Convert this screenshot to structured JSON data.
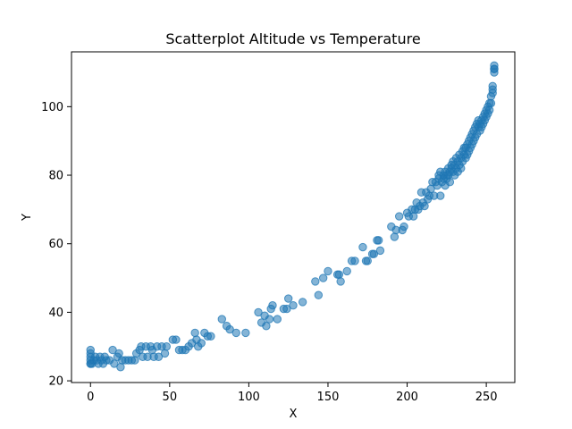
{
  "chart_data": {
    "type": "scatter",
    "title": "Scatterplot Altitude vs Temperature",
    "xlabel": "X",
    "ylabel": "Y",
    "xlim": [
      -12,
      268
    ],
    "ylim": [
      19.5,
      116
    ],
    "xticks": [
      0,
      50,
      100,
      150,
      200,
      250
    ],
    "yticks": [
      20,
      40,
      60,
      80,
      100
    ],
    "grid": false,
    "marker_color": "#1f77b4",
    "series": [
      {
        "points": [
          [
            0,
            25
          ],
          [
            0,
            25
          ],
          [
            0,
            26
          ],
          [
            0,
            27
          ],
          [
            0,
            28
          ],
          [
            0,
            29
          ],
          [
            1,
            25
          ],
          [
            2,
            26
          ],
          [
            3,
            27
          ],
          [
            4,
            26
          ],
          [
            5,
            25
          ],
          [
            6,
            27
          ],
          [
            7,
            26
          ],
          [
            8,
            25
          ],
          [
            9,
            27
          ],
          [
            10,
            26
          ],
          [
            12,
            26
          ],
          [
            14,
            29
          ],
          [
            15,
            25
          ],
          [
            17,
            27
          ],
          [
            18,
            28
          ],
          [
            19,
            24
          ],
          [
            20,
            26
          ],
          [
            22,
            26
          ],
          [
            24,
            26
          ],
          [
            26,
            26
          ],
          [
            28,
            26
          ],
          [
            29,
            28
          ],
          [
            31,
            29
          ],
          [
            32,
            30
          ],
          [
            33,
            27
          ],
          [
            35,
            30
          ],
          [
            36,
            27
          ],
          [
            38,
            30
          ],
          [
            39,
            29
          ],
          [
            40,
            27
          ],
          [
            42,
            30
          ],
          [
            43,
            27
          ],
          [
            45,
            30
          ],
          [
            47,
            28
          ],
          [
            48,
            30
          ],
          [
            52,
            32
          ],
          [
            54,
            32
          ],
          [
            56,
            29
          ],
          [
            58,
            29
          ],
          [
            60,
            29
          ],
          [
            62,
            30
          ],
          [
            64,
            31
          ],
          [
            66,
            34
          ],
          [
            67,
            32
          ],
          [
            68,
            30
          ],
          [
            70,
            31
          ],
          [
            72,
            34
          ],
          [
            74,
            33
          ],
          [
            76,
            33
          ],
          [
            83,
            38
          ],
          [
            86,
            36
          ],
          [
            88,
            35
          ],
          [
            92,
            34
          ],
          [
            98,
            34
          ],
          [
            106,
            40
          ],
          [
            108,
            37
          ],
          [
            110,
            39
          ],
          [
            111,
            36
          ],
          [
            113,
            38
          ],
          [
            114,
            41
          ],
          [
            115,
            42
          ],
          [
            118,
            38
          ],
          [
            122,
            41
          ],
          [
            124,
            41
          ],
          [
            125,
            44
          ],
          [
            128,
            42
          ],
          [
            134,
            43
          ],
          [
            142,
            49
          ],
          [
            144,
            45
          ],
          [
            147,
            50
          ],
          [
            150,
            52
          ],
          [
            156,
            51
          ],
          [
            158,
            49
          ],
          [
            157,
            51
          ],
          [
            162,
            52
          ],
          [
            165,
            55
          ],
          [
            167,
            55
          ],
          [
            172,
            59
          ],
          [
            174,
            55
          ],
          [
            175,
            55
          ],
          [
            178,
            57
          ],
          [
            179,
            57
          ],
          [
            181,
            61
          ],
          [
            182,
            61
          ],
          [
            183,
            58
          ],
          [
            190,
            65
          ],
          [
            192,
            62
          ],
          [
            193,
            64
          ],
          [
            195,
            68
          ],
          [
            197,
            64
          ],
          [
            198,
            65
          ],
          [
            200,
            69
          ],
          [
            201,
            68
          ],
          [
            203,
            70
          ],
          [
            204,
            68
          ],
          [
            205,
            70
          ],
          [
            206,
            72
          ],
          [
            207,
            70
          ],
          [
            208,
            71
          ],
          [
            209,
            75
          ],
          [
            210,
            72
          ],
          [
            211,
            71
          ],
          [
            212,
            75
          ],
          [
            213,
            73
          ],
          [
            214,
            74
          ],
          [
            215,
            76
          ],
          [
            216,
            78
          ],
          [
            217,
            74
          ],
          [
            218,
            78
          ],
          [
            219,
            77
          ],
          [
            220,
            80
          ],
          [
            220,
            79
          ],
          [
            221,
            74
          ],
          [
            221,
            81
          ],
          [
            222,
            78
          ],
          [
            223,
            79
          ],
          [
            223,
            80
          ],
          [
            224,
            81
          ],
          [
            224,
            77
          ],
          [
            225,
            80
          ],
          [
            225,
            79
          ],
          [
            226,
            82
          ],
          [
            226,
            80
          ],
          [
            227,
            81
          ],
          [
            227,
            78
          ],
          [
            228,
            83
          ],
          [
            228,
            82
          ],
          [
            229,
            81
          ],
          [
            229,
            84
          ],
          [
            230,
            83
          ],
          [
            230,
            80
          ],
          [
            231,
            82
          ],
          [
            231,
            85
          ],
          [
            232,
            84
          ],
          [
            232,
            81
          ],
          [
            233,
            86
          ],
          [
            233,
            83
          ],
          [
            234,
            85
          ],
          [
            234,
            82
          ],
          [
            235,
            87
          ],
          [
            235,
            84
          ],
          [
            236,
            86
          ],
          [
            236,
            88
          ],
          [
            237,
            85
          ],
          [
            237,
            88
          ],
          [
            238,
            89
          ],
          [
            238,
            86
          ],
          [
            239,
            90
          ],
          [
            239,
            87
          ],
          [
            240,
            91
          ],
          [
            240,
            88
          ],
          [
            241,
            92
          ],
          [
            241,
            89
          ],
          [
            242,
            93
          ],
          [
            242,
            90
          ],
          [
            243,
            94
          ],
          [
            243,
            91
          ],
          [
            244,
            95
          ],
          [
            244,
            92
          ],
          [
            245,
            94
          ],
          [
            245,
            96
          ],
          [
            246,
            95
          ],
          [
            246,
            93
          ],
          [
            247,
            96
          ],
          [
            247,
            94
          ],
          [
            248,
            97
          ],
          [
            248,
            95
          ],
          [
            249,
            98
          ],
          [
            249,
            96
          ],
          [
            250,
            99
          ],
          [
            250,
            97
          ],
          [
            251,
            100
          ],
          [
            251,
            98
          ],
          [
            252,
            101
          ],
          [
            252,
            99
          ],
          [
            253,
            103
          ],
          [
            253,
            101
          ],
          [
            254,
            105
          ],
          [
            254,
            104
          ],
          [
            254,
            106
          ],
          [
            255,
            110
          ],
          [
            255,
            111
          ],
          [
            255,
            112
          ],
          [
            255,
            111
          ]
        ]
      }
    ]
  }
}
